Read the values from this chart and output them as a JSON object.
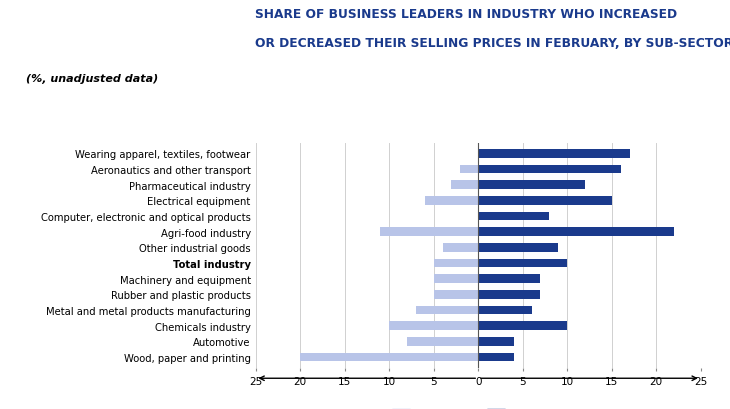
{
  "title_line1": "SHARE OF BUSINESS LEADERS IN INDUSTRY WHO INCREASED",
  "title_line2": "OR DECREASED THEIR SELLING PRICES IN FEBRUARY, BY SUB-SECTOR",
  "subtitle": "(%, unadjusted data)",
  "categories": [
    "Wearing apparel, textiles, footwear",
    "Aeronautics and other transport",
    "Pharmaceutical industry",
    "Electrical equipment",
    "Computer, electronic and optical products",
    "Agri-food industry",
    "Other industrial goods",
    "Total industry",
    "Machinery and equipment",
    "Rubber and plastic products",
    "Metal and metal products manufacturing",
    "Chemicals industry",
    "Automotive",
    "Wood, paper and printing"
  ],
  "increase": [
    17,
    16,
    12,
    15,
    8,
    22,
    9,
    10,
    7,
    7,
    6,
    10,
    4,
    4
  ],
  "decrease": [
    0,
    2,
    3,
    6,
    0,
    11,
    4,
    5,
    5,
    5,
    7,
    10,
    8,
    20
  ],
  "increase_color": "#1a3a8c",
  "decrease_color": "#b8c4e8",
  "title_color": "#1a3a8c",
  "grid_color": "#d0d0d0",
  "total_industry_index": 7
}
